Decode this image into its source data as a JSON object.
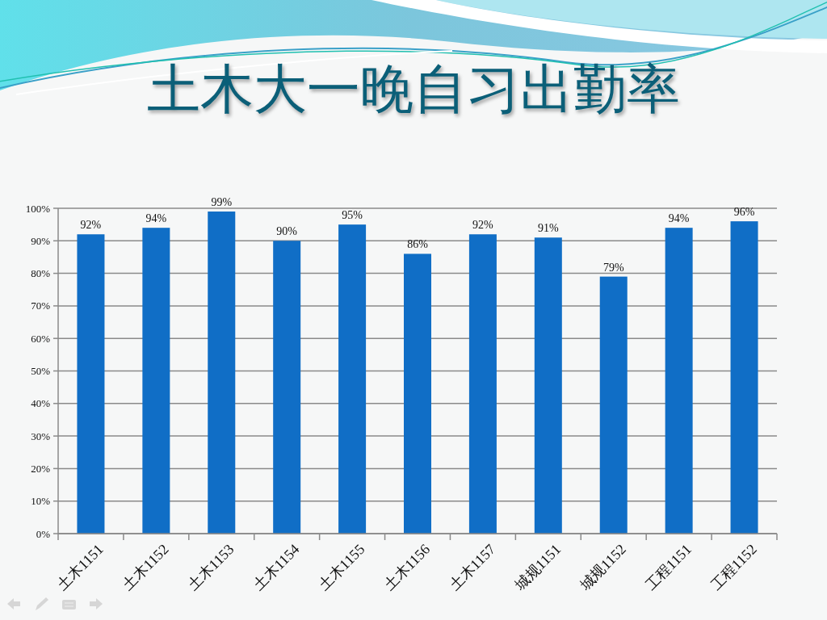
{
  "chart_data": {
    "type": "bar",
    "title": "土木大一晚自习出勤率",
    "categories": [
      "土木1151",
      "土木1152",
      "土木1153",
      "土木1154",
      "土木1155",
      "土木1156",
      "土木1157",
      "城规1151",
      "城规1152",
      "工程1151",
      "工程1152"
    ],
    "values": [
      92,
      94,
      99,
      90,
      95,
      86,
      92,
      91,
      79,
      94,
      96
    ],
    "value_labels": [
      "92%",
      "94%",
      "99%",
      "90%",
      "95%",
      "86%",
      "92%",
      "91%",
      "79%",
      "94%",
      "96%"
    ],
    "color": "#106ec6",
    "ylim": [
      0,
      100
    ],
    "yticks": [
      {
        "value": 0,
        "label": "0%"
      },
      {
        "value": 10,
        "label": "10%"
      },
      {
        "value": 20,
        "label": "20%"
      },
      {
        "value": 30,
        "label": "30%"
      },
      {
        "value": 40,
        "label": "40%"
      },
      {
        "value": 50,
        "label": "50%"
      },
      {
        "value": 60,
        "label": "60%"
      },
      {
        "value": 70,
        "label": "70%"
      },
      {
        "value": 80,
        "label": "80%"
      },
      {
        "value": 90,
        "label": "90%"
      },
      {
        "value": 100,
        "label": "100%"
      }
    ],
    "grid": "y"
  }
}
